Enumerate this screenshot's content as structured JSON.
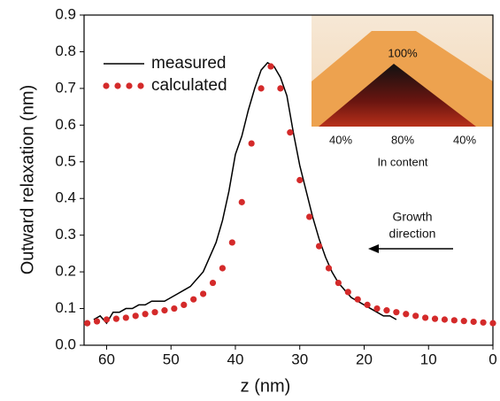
{
  "chart_data": {
    "type": "line",
    "x_label": "z (nm)",
    "y_label": "Outward relaxation (nm)",
    "xlim": [
      63.5,
      0
    ],
    "xticks": [
      60,
      50,
      40,
      30,
      20,
      10,
      0
    ],
    "ylim": [
      0,
      0.9
    ],
    "yticks": [
      {
        "value": 0,
        "label": "0.0"
      },
      0.1,
      0.2,
      0.3,
      0.4,
      0.5,
      0.6,
      0.7,
      0.8,
      0.9
    ],
    "legend": "upper left",
    "series": [
      {
        "name": "measured",
        "color": "#000000",
        "style": "line",
        "x": [
          62,
          61,
          60,
          59,
          58,
          57,
          56,
          55,
          54,
          53,
          52,
          51,
          50,
          49,
          48,
          47,
          46,
          45,
          44,
          43,
          42,
          41,
          40,
          39,
          38,
          37,
          36,
          35,
          34,
          33,
          32,
          31,
          30,
          29,
          28,
          27,
          26,
          25,
          24,
          23,
          22,
          21,
          20,
          19,
          18,
          17,
          16,
          15
        ],
        "values": [
          0.07,
          0.08,
          0.06,
          0.09,
          0.09,
          0.1,
          0.1,
          0.11,
          0.11,
          0.12,
          0.12,
          0.12,
          0.13,
          0.14,
          0.15,
          0.16,
          0.18,
          0.2,
          0.24,
          0.28,
          0.34,
          0.42,
          0.52,
          0.57,
          0.64,
          0.7,
          0.75,
          0.77,
          0.76,
          0.73,
          0.68,
          0.58,
          0.49,
          0.42,
          0.35,
          0.29,
          0.24,
          0.2,
          0.17,
          0.15,
          0.13,
          0.12,
          0.11,
          0.1,
          0.09,
          0.08,
          0.08,
          0.07
        ]
      },
      {
        "name": "calculated",
        "color": "#d42a2a",
        "style": "dots",
        "x": [
          63,
          61.5,
          60,
          58.5,
          57,
          55.5,
          54,
          52.5,
          51,
          49.5,
          48,
          46.5,
          45,
          43.5,
          42,
          40.5,
          39,
          37.5,
          36,
          34.5,
          33,
          31.5,
          30,
          28.5,
          27,
          25.5,
          24,
          22.5,
          21,
          19.5,
          18,
          16.5,
          15,
          13.5,
          12,
          10.5,
          9,
          7.5,
          6,
          4.5,
          3,
          1.5,
          0
        ],
        "values": [
          0.06,
          0.065,
          0.07,
          0.072,
          0.075,
          0.08,
          0.085,
          0.09,
          0.095,
          0.1,
          0.11,
          0.125,
          0.14,
          0.17,
          0.21,
          0.28,
          0.39,
          0.55,
          0.7,
          0.76,
          0.7,
          0.58,
          0.45,
          0.35,
          0.27,
          0.21,
          0.17,
          0.145,
          0.125,
          0.11,
          0.1,
          0.095,
          0.09,
          0.085,
          0.08,
          0.075,
          0.072,
          0.07,
          0.068,
          0.066,
          0.064,
          0.062,
          0.06
        ]
      }
    ],
    "annotations": [
      "Growth",
      "direction"
    ],
    "inset": {
      "peak_label": "100%",
      "bottom_labels": [
        "40%",
        "80%",
        "40%"
      ],
      "x_label": "In content"
    }
  }
}
